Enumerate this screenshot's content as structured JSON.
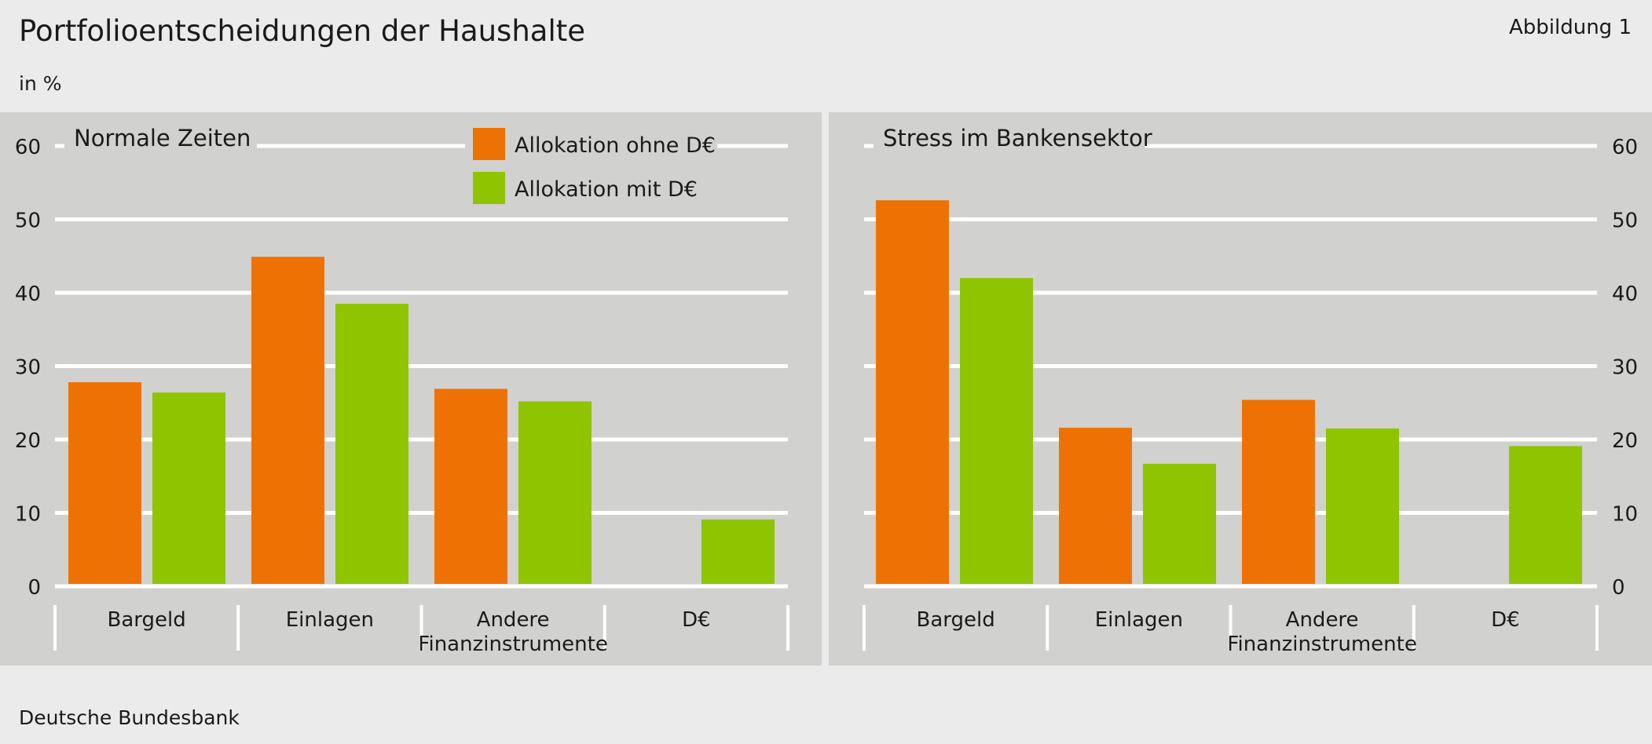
{
  "header": {
    "title": "Portfolioentscheidungen der Haushalte",
    "figure_label": "Abbildung 1",
    "unit": "in %"
  },
  "footer": {
    "source": "Deutsche Bundesbank"
  },
  "colors": {
    "ohne": "#ee7203",
    "mit": "#8fc400",
    "panel": "#d1d1cf",
    "grid": "#ffffff"
  },
  "legend": [
    {
      "name": "Allokation ohne D€",
      "color": "#ee7203"
    },
    {
      "name": "Allokation mit D€",
      "color": "#8fc400"
    }
  ],
  "chart_data": [
    {
      "type": "bar",
      "title": "Normale Zeiten",
      "categories": [
        "Bargeld",
        "Einlagen",
        "Andere Finanzinstrumente",
        "D€"
      ],
      "series": [
        {
          "name": "Allokation ohne D€",
          "values": [
            27.8,
            44.9,
            26.9,
            null
          ]
        },
        {
          "name": "Allokation mit D€",
          "values": [
            26.4,
            38.5,
            25.2,
            9.1
          ]
        }
      ],
      "ylim": [
        0,
        60
      ],
      "yticks": [
        0,
        10,
        20,
        30,
        40,
        50,
        60
      ],
      "yaxis_side": "left",
      "grid": true,
      "legend_position": "top-right"
    },
    {
      "type": "bar",
      "title": "Stress im Bankensektor",
      "categories": [
        "Bargeld",
        "Einlagen",
        "Andere Finanzinstrumente",
        "D€"
      ],
      "series": [
        {
          "name": "Allokation ohne D€",
          "values": [
            52.6,
            21.6,
            25.4,
            null
          ]
        },
        {
          "name": "Allokation mit D€",
          "values": [
            42.0,
            16.7,
            21.5,
            19.1
          ]
        }
      ],
      "ylim": [
        0,
        60
      ],
      "yticks": [
        0,
        10,
        20,
        30,
        40,
        50,
        60
      ],
      "yaxis_side": "right",
      "grid": true
    }
  ]
}
